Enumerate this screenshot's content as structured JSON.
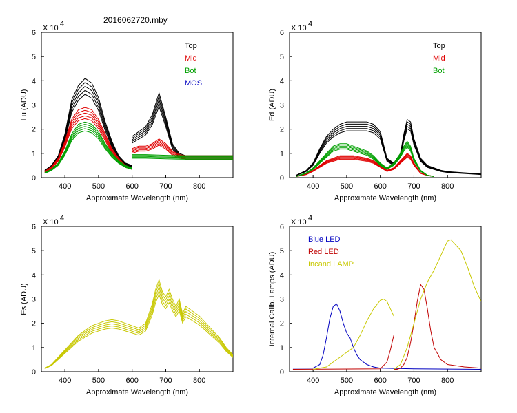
{
  "figure_title": "2016062720.mby",
  "chart_data": [
    {
      "type": "line",
      "id": "lu",
      "ylabel": "Lu (ADU)",
      "xlabel": "Approximate Wavelength (nm)",
      "exponent_label": "X 10",
      "exponent_power": "4",
      "xlim": [
        330,
        900
      ],
      "ylim": [
        0,
        6
      ],
      "xticks": [
        "400",
        "500",
        "600",
        "700",
        "800"
      ],
      "yticks": [
        "0",
        "1",
        "2",
        "3",
        "4",
        "5",
        "6"
      ],
      "legend": [
        {
          "label": "Top",
          "color": "#000000"
        },
        {
          "label": "Mid",
          "color": "#e00000"
        },
        {
          "label": "Bot",
          "color": "#00a000"
        },
        {
          "label": "MOS",
          "color": "#0000c0"
        }
      ],
      "series": [
        {
          "name": "Top",
          "color": "#000000",
          "segments": [
            {
              "x": [
                340,
                360,
                380,
                400,
                420,
                440,
                460,
                480,
                500,
                520,
                540,
                560,
                580,
                600
              ],
              "y": [
                0.3,
                0.5,
                0.9,
                1.8,
                3.2,
                3.8,
                4.1,
                3.9,
                3.3,
                2.3,
                1.5,
                0.9,
                0.6,
                0.5
              ]
            },
            {
              "x": [
                600,
                620,
                640,
                660,
                680,
                700,
                720,
                740,
                760,
                800,
                850,
                900
              ],
              "y": [
                1.7,
                1.9,
                2.1,
                2.6,
                3.5,
                2.5,
                1.4,
                1.0,
                0.9,
                0.9,
                0.9,
                0.9
              ]
            }
          ]
        },
        {
          "name": "Mid",
          "color": "#e00000",
          "segments": [
            {
              "x": [
                340,
                360,
                380,
                400,
                420,
                440,
                460,
                480,
                500,
                520,
                540,
                560,
                580,
                600
              ],
              "y": [
                0.25,
                0.45,
                0.8,
                1.5,
                2.4,
                2.8,
                2.9,
                2.8,
                2.4,
                1.8,
                1.2,
                0.8,
                0.5,
                0.4
              ]
            },
            {
              "x": [
                600,
                620,
                640,
                660,
                680,
                700,
                720,
                740,
                760,
                800,
                850,
                900
              ],
              "y": [
                1.2,
                1.3,
                1.3,
                1.4,
                1.6,
                1.4,
                1.1,
                0.95,
                0.9,
                0.9,
                0.9,
                0.9
              ]
            }
          ]
        },
        {
          "name": "Bot",
          "color": "#00a000",
          "segments": [
            {
              "x": [
                340,
                360,
                380,
                400,
                420,
                440,
                460,
                480,
                500,
                520,
                540,
                560,
                580,
                600
              ],
              "y": [
                0.2,
                0.35,
                0.6,
                1.1,
                1.8,
                2.2,
                2.3,
                2.2,
                1.9,
                1.4,
                1.0,
                0.7,
                0.5,
                0.4
              ]
            },
            {
              "x": [
                600,
                640,
                700,
                760,
                800,
                850,
                900
              ],
              "y": [
                0.95,
                0.95,
                0.92,
                0.9,
                0.9,
                0.9,
                0.9
              ]
            }
          ]
        },
        {
          "name": "MOS",
          "color": "#0000c0",
          "segments": []
        }
      ]
    },
    {
      "type": "line",
      "id": "ed",
      "ylabel": "Ed  (ADU)",
      "xlabel": "Approximate Wavelength (nm)",
      "exponent_label": "X 10",
      "exponent_power": "4",
      "xlim": [
        330,
        900
      ],
      "ylim": [
        0,
        6
      ],
      "xticks": [
        "400",
        "500",
        "600",
        "700",
        "800"
      ],
      "yticks": [
        "0",
        "1",
        "2",
        "3",
        "4",
        "5",
        "6"
      ],
      "legend": [
        {
          "label": "Top",
          "color": "#000000"
        },
        {
          "label": "Mid",
          "color": "#e00000"
        },
        {
          "label": "Bot",
          "color": "#00a000"
        }
      ],
      "series": [
        {
          "name": "Top",
          "color": "#000000",
          "segments": [
            {
              "x": [
                350,
                380,
                400,
                420,
                440,
                460,
                480,
                500,
                520,
                540,
                560,
                580,
                600,
                620,
                640,
                660,
                670,
                680,
                690,
                700,
                720,
                740,
                760,
                780,
                800,
                850,
                900
              ],
              "y": [
                0.1,
                0.3,
                0.6,
                1.2,
                1.7,
                2.0,
                2.2,
                2.3,
                2.3,
                2.3,
                2.3,
                2.2,
                1.9,
                0.8,
                0.6,
                1.0,
                1.8,
                2.4,
                2.3,
                1.6,
                0.8,
                0.5,
                0.4,
                0.3,
                0.25,
                0.2,
                0.15
              ]
            }
          ]
        },
        {
          "name": "Mid",
          "color": "#e00000",
          "segments": [
            {
              "x": [
                350,
                380,
                400,
                420,
                440,
                460,
                480,
                500,
                520,
                540,
                560,
                580,
                600,
                620,
                640,
                660,
                670,
                680,
                690,
                700,
                720,
                740,
                760
              ],
              "y": [
                0.05,
                0.15,
                0.3,
                0.5,
                0.7,
                0.8,
                0.9,
                0.9,
                0.9,
                0.85,
                0.8,
                0.7,
                0.5,
                0.3,
                0.4,
                0.7,
                0.85,
                1.0,
                0.9,
                0.6,
                0.2,
                0.1,
                0.05
              ]
            }
          ]
        },
        {
          "name": "Bot",
          "color": "#00a000",
          "segments": [
            {
              "x": [
                350,
                380,
                400,
                420,
                440,
                460,
                480,
                500,
                520,
                540,
                560,
                580,
                600,
                620,
                640,
                660,
                670,
                680,
                690,
                700,
                720,
                740,
                760
              ],
              "y": [
                0.05,
                0.2,
                0.4,
                0.7,
                1.0,
                1.3,
                1.4,
                1.4,
                1.3,
                1.2,
                1.1,
                0.9,
                0.6,
                0.4,
                0.6,
                1.0,
                1.3,
                1.5,
                1.3,
                0.8,
                0.3,
                0.1,
                0.05
              ]
            }
          ]
        }
      ]
    },
    {
      "type": "line",
      "id": "es",
      "ylabel": "Es  (ADU)",
      "xlabel": "Approximate Wavelength (nm)",
      "exponent_label": "X 10",
      "exponent_power": "4",
      "xlim": [
        330,
        900
      ],
      "ylim": [
        0,
        6
      ],
      "xticks": [
        "400",
        "500",
        "600",
        "700",
        "800"
      ],
      "yticks": [
        "0",
        "1",
        "2",
        "3",
        "4",
        "5",
        "6"
      ],
      "legend": [],
      "series": [
        {
          "name": "Es",
          "color": "#c8c800",
          "segments": [
            {
              "x": [
                340,
                360,
                380,
                400,
                420,
                440,
                460,
                480,
                500,
                520,
                540,
                560,
                580,
                600,
                620,
                640,
                660,
                670,
                680,
                690,
                700,
                710,
                720,
                730,
                740,
                750,
                760,
                780,
                800,
                820,
                840,
                860,
                880,
                900
              ],
              "y": [
                0.15,
                0.3,
                0.6,
                0.9,
                1.2,
                1.5,
                1.7,
                1.9,
                2.0,
                2.1,
                2.15,
                2.1,
                2.0,
                1.9,
                1.8,
                2.0,
                2.8,
                3.4,
                3.8,
                3.3,
                3.1,
                3.4,
                3.0,
                2.7,
                3.0,
                2.4,
                2.7,
                2.5,
                2.3,
                2.0,
                1.7,
                1.4,
                1.0,
                0.7
              ]
            }
          ]
        }
      ]
    },
    {
      "type": "line",
      "id": "lamps",
      "ylabel": "Internal Calib. Lamps (ADU)",
      "xlabel": "Approximate Wavelength (nm)",
      "exponent_label": "X 10",
      "exponent_power": "4",
      "xlim": [
        330,
        900
      ],
      "ylim": [
        0,
        6
      ],
      "xticks": [
        "400",
        "500",
        "600",
        "700",
        "800"
      ],
      "yticks": [
        "0",
        "1",
        "2",
        "3",
        "4",
        "5",
        "6"
      ],
      "legend": [
        {
          "label": "Blue LED",
          "color": "#0000c0"
        },
        {
          "label": "Red LED",
          "color": "#c00000"
        },
        {
          "label": "Incand LAMP",
          "color": "#c8c800"
        }
      ],
      "series": [
        {
          "name": "Blue LED",
          "color": "#0000c0",
          "segments": [
            {
              "x": [
                340,
                400,
                420,
                430,
                440,
                450,
                460,
                470,
                480,
                490,
                500,
                510,
                520,
                530,
                540,
                560,
                580,
                600,
                700,
                900
              ],
              "y": [
                0.15,
                0.15,
                0.3,
                0.7,
                1.4,
                2.2,
                2.7,
                2.8,
                2.5,
                2.0,
                1.6,
                1.4,
                1.0,
                0.7,
                0.5,
                0.3,
                0.2,
                0.15,
                0.12,
                0.1
              ]
            }
          ]
        },
        {
          "name": "Red LED",
          "color": "#c00000",
          "segments": [
            {
              "x": [
                340,
                600,
                620,
                630,
                640
              ],
              "y": [
                0.1,
                0.12,
                0.4,
                0.9,
                1.5
              ]
            },
            {
              "x": [
                640,
                650,
                660,
                670,
                680,
                690,
                700,
                710,
                720,
                730,
                740,
                750,
                760,
                780,
                800,
                850,
                900
              ],
              "y": [
                0.1,
                0.1,
                0.15,
                0.3,
                0.6,
                1.2,
                2.0,
                2.9,
                3.6,
                3.4,
                2.6,
                1.7,
                1.0,
                0.5,
                0.3,
                0.2,
                0.15
              ]
            }
          ]
        },
        {
          "name": "Incand LAMP",
          "color": "#c8c800",
          "segments": [
            {
              "x": [
                400,
                440,
                460,
                480,
                500,
                520,
                540,
                560,
                580,
                600,
                610,
                620,
                630,
                640
              ],
              "y": [
                0.1,
                0.2,
                0.4,
                0.6,
                0.8,
                1.0,
                1.5,
                2.1,
                2.6,
                2.95,
                3.0,
                2.9,
                2.6,
                2.3
              ]
            },
            {
              "x": [
                640,
                660,
                680,
                700,
                720,
                740,
                760,
                780,
                800,
                810,
                820,
                840,
                860,
                880,
                900
              ],
              "y": [
                0.1,
                0.3,
                1.0,
                2.0,
                3.0,
                3.7,
                4.2,
                4.8,
                5.4,
                5.45,
                5.3,
                5.0,
                4.3,
                3.5,
                2.9
              ]
            }
          ]
        }
      ]
    }
  ]
}
